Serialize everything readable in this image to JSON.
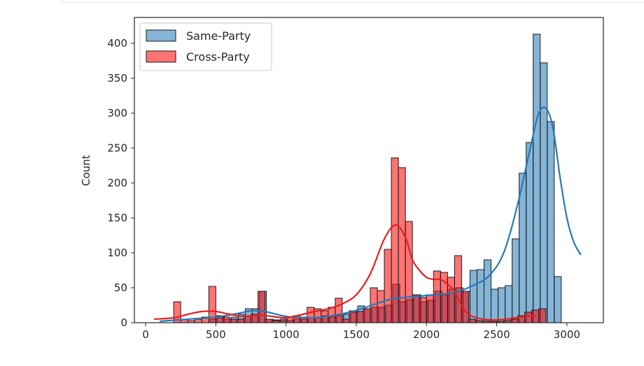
{
  "chart_data": {
    "type": "histogram",
    "xlabel": "",
    "ylabel": "Count",
    "xlim": [
      -80,
      3260
    ],
    "ylim": [
      0,
      437
    ],
    "xticks": [
      0,
      500,
      1000,
      1500,
      2000,
      2500,
      3000
    ],
    "yticks": [
      0,
      50,
      100,
      150,
      200,
      250,
      300,
      350,
      400
    ],
    "legend_position": "upper-left",
    "series": [
      {
        "name": "Same-Party",
        "color": "#1f77b4",
        "kde_color": "#2878b8",
        "bins": [
          [
            460,
            5
          ],
          [
            510,
            7
          ],
          [
            560,
            5
          ],
          [
            610,
            8
          ],
          [
            660,
            12
          ],
          [
            710,
            20
          ],
          [
            760,
            20
          ],
          [
            810,
            45
          ],
          [
            860,
            5
          ],
          [
            910,
            4
          ],
          [
            960,
            5
          ],
          [
            1010,
            3
          ],
          [
            1060,
            5
          ],
          [
            1110,
            5
          ],
          [
            1160,
            7
          ],
          [
            1210,
            8
          ],
          [
            1260,
            10
          ],
          [
            1310,
            8
          ],
          [
            1360,
            10
          ],
          [
            1410,
            12
          ],
          [
            1460,
            15
          ],
          [
            1510,
            24
          ],
          [
            1560,
            20
          ],
          [
            1610,
            22
          ],
          [
            1660,
            22
          ],
          [
            1710,
            25
          ],
          [
            1760,
            55
          ],
          [
            1810,
            30
          ],
          [
            1860,
            33
          ],
          [
            1910,
            40
          ],
          [
            1960,
            30
          ],
          [
            2010,
            32
          ],
          [
            2060,
            45
          ],
          [
            2110,
            40
          ],
          [
            2160,
            48
          ],
          [
            2210,
            50
          ],
          [
            2260,
            45
          ],
          [
            2310,
            75
          ],
          [
            2360,
            76
          ],
          [
            2410,
            90
          ],
          [
            2460,
            48
          ],
          [
            2510,
            50
          ],
          [
            2560,
            53
          ],
          [
            2610,
            120
          ],
          [
            2660,
            214
          ],
          [
            2710,
            258
          ],
          [
            2760,
            413
          ],
          [
            2810,
            372
          ],
          [
            2860,
            288
          ],
          [
            2910,
            66
          ]
        ],
        "kde": [
          [
            100,
            2
          ],
          [
            300,
            5
          ],
          [
            500,
            8
          ],
          [
            650,
            13
          ],
          [
            750,
            17
          ],
          [
            850,
            16
          ],
          [
            1000,
            9
          ],
          [
            1150,
            7
          ],
          [
            1300,
            9
          ],
          [
            1450,
            15
          ],
          [
            1600,
            24
          ],
          [
            1750,
            34
          ],
          [
            1900,
            37
          ],
          [
            2050,
            40
          ],
          [
            2200,
            43
          ],
          [
            2350,
            55
          ],
          [
            2450,
            68
          ],
          [
            2550,
            100
          ],
          [
            2650,
            170
          ],
          [
            2750,
            260
          ],
          [
            2800,
            300
          ],
          [
            2850,
            307
          ],
          [
            2900,
            280
          ],
          [
            2950,
            210
          ],
          [
            3000,
            150
          ],
          [
            3050,
            115
          ],
          [
            3100,
            97
          ]
        ]
      },
      {
        "name": "Cross-Party",
        "color": "#ff0000",
        "kde_color": "#e62020",
        "bins": [
          [
            200,
            30
          ],
          [
            250,
            5
          ],
          [
            300,
            3
          ],
          [
            350,
            5
          ],
          [
            400,
            8
          ],
          [
            450,
            52
          ],
          [
            500,
            10
          ],
          [
            550,
            8
          ],
          [
            600,
            5
          ],
          [
            650,
            5
          ],
          [
            700,
            10
          ],
          [
            750,
            12
          ],
          [
            800,
            45
          ],
          [
            850,
            5
          ],
          [
            900,
            3
          ],
          [
            950,
            3
          ],
          [
            1000,
            8
          ],
          [
            1050,
            10
          ],
          [
            1100,
            8
          ],
          [
            1150,
            22
          ],
          [
            1200,
            20
          ],
          [
            1250,
            17
          ],
          [
            1300,
            22
          ],
          [
            1350,
            35
          ],
          [
            1400,
            5
          ],
          [
            1450,
            17
          ],
          [
            1500,
            16
          ],
          [
            1550,
            20
          ],
          [
            1600,
            50
          ],
          [
            1650,
            46
          ],
          [
            1700,
            105
          ],
          [
            1750,
            236
          ],
          [
            1800,
            222
          ],
          [
            1850,
            145
          ],
          [
            1900,
            40
          ],
          [
            1950,
            36
          ],
          [
            2000,
            40
          ],
          [
            2050,
            74
          ],
          [
            2100,
            72
          ],
          [
            2150,
            65
          ],
          [
            2200,
            96
          ],
          [
            2250,
            45
          ],
          [
            2300,
            5
          ],
          [
            2350,
            3
          ],
          [
            2400,
            2
          ],
          [
            2450,
            2
          ],
          [
            2500,
            2
          ],
          [
            2550,
            3
          ],
          [
            2600,
            5
          ],
          [
            2650,
            10
          ],
          [
            2700,
            15
          ],
          [
            2750,
            18
          ],
          [
            2800,
            20
          ]
        ],
        "kde": [
          [
            60,
            5
          ],
          [
            200,
            7
          ],
          [
            300,
            12
          ],
          [
            400,
            16
          ],
          [
            500,
            16
          ],
          [
            600,
            12
          ],
          [
            700,
            9
          ],
          [
            800,
            11
          ],
          [
            900,
            9
          ],
          [
            1000,
            7
          ],
          [
            1100,
            11
          ],
          [
            1200,
            16
          ],
          [
            1300,
            20
          ],
          [
            1400,
            27
          ],
          [
            1500,
            40
          ],
          [
            1600,
            70
          ],
          [
            1700,
            120
          ],
          [
            1780,
            140
          ],
          [
            1850,
            122
          ],
          [
            1900,
            90
          ],
          [
            1950,
            75
          ],
          [
            2000,
            65
          ],
          [
            2050,
            62
          ],
          [
            2100,
            62
          ],
          [
            2150,
            55
          ],
          [
            2200,
            45
          ],
          [
            2250,
            25
          ],
          [
            2300,
            12
          ],
          [
            2400,
            5
          ],
          [
            2500,
            4
          ],
          [
            2600,
            6
          ],
          [
            2700,
            9
          ],
          [
            2780,
            10
          ]
        ]
      }
    ]
  }
}
